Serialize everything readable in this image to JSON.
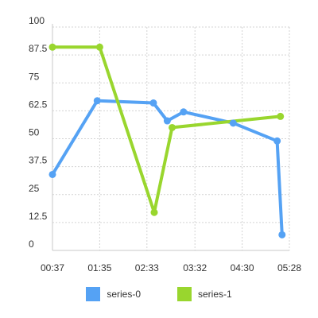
{
  "chart_data": {
    "type": "line",
    "title": "",
    "xlabel": "",
    "ylabel": "",
    "x_ticks": [
      "00:37",
      "01:35",
      "02:33",
      "03:32",
      "04:30",
      "05:28"
    ],
    "y_ticks": [
      "0",
      "12.5",
      "25",
      "37.5",
      "50",
      "62.5",
      "75",
      "87.5",
      "100"
    ],
    "xlim": [
      "00:37",
      "05:28"
    ],
    "ylim": [
      0,
      100
    ],
    "grid": true,
    "legend_position": "bottom",
    "series": [
      {
        "name": "series-0",
        "color": "#55a2f4",
        "points": [
          {
            "x": "00:37",
            "y": 34
          },
          {
            "x": "01:32",
            "y": 67
          },
          {
            "x": "02:41",
            "y": 66
          },
          {
            "x": "02:58",
            "y": 58
          },
          {
            "x": "03:18",
            "y": 62
          },
          {
            "x": "04:19",
            "y": 57
          },
          {
            "x": "05:13",
            "y": 49
          },
          {
            "x": "05:19",
            "y": 7
          }
        ]
      },
      {
        "name": "series-1",
        "color": "#99d62e",
        "points": [
          {
            "x": "00:37",
            "y": 91
          },
          {
            "x": "01:35",
            "y": 91
          },
          {
            "x": "02:42",
            "y": 17
          },
          {
            "x": "03:04",
            "y": 55
          },
          {
            "x": "05:17",
            "y": 60
          }
        ]
      }
    ]
  }
}
